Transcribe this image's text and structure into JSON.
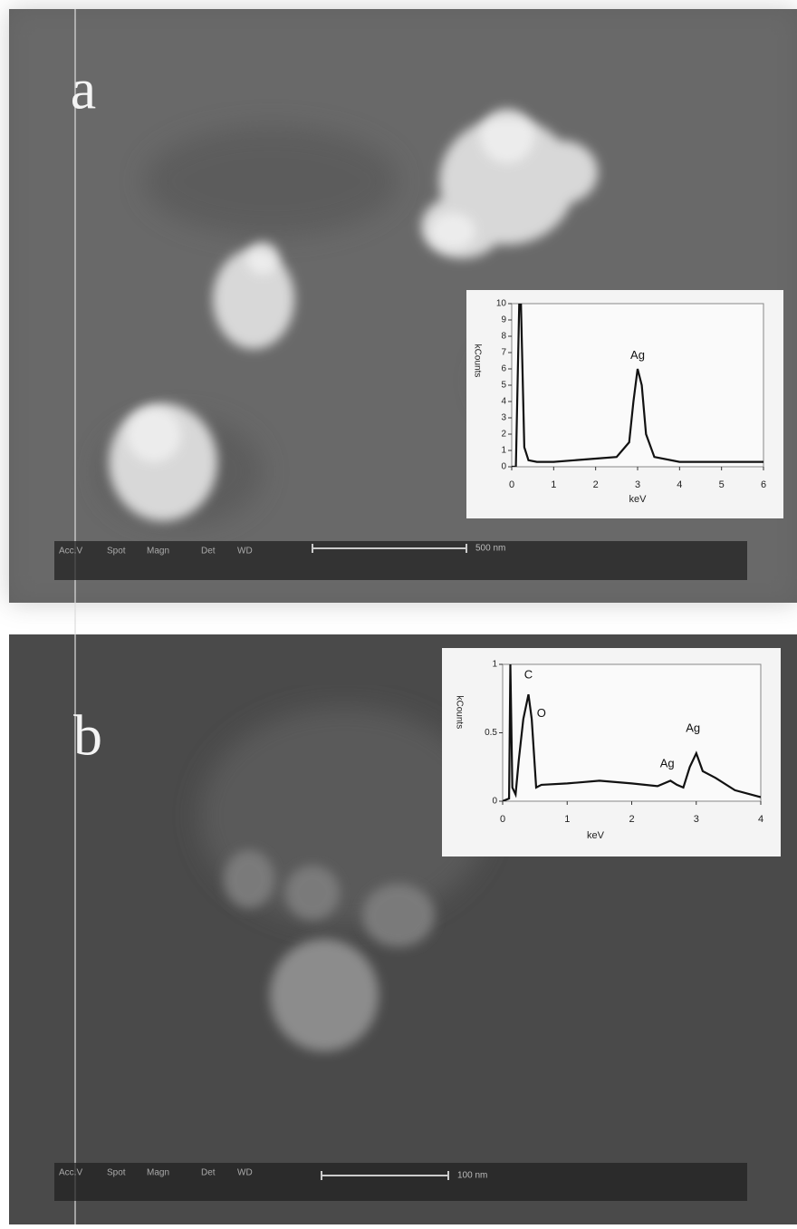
{
  "chart_data": [
    {
      "type": "line",
      "xlabel": "keV",
      "ylabel": "kCounts",
      "color": "#111111",
      "x": [
        0,
        0.1,
        0.18,
        0.22,
        0.3,
        0.4,
        0.6,
        1,
        1.5,
        2,
        2.5,
        2.8,
        2.9,
        3,
        3.1,
        3.2,
        3.4,
        4,
        5,
        6
      ],
      "values": [
        0,
        0,
        10,
        10,
        1.2,
        0.4,
        0.3,
        0.3,
        0.4,
        0.5,
        0.6,
        1.5,
        4,
        6,
        5,
        2,
        0.6,
        0.3,
        0.3,
        0.3
      ],
      "xlim": [
        0,
        6
      ],
      "ylim": [
        0,
        10
      ],
      "xticks": [
        0,
        1,
        2,
        3,
        4,
        5,
        6
      ],
      "yticks": [
        0,
        1,
        2,
        3,
        4,
        5,
        6,
        7,
        8,
        9,
        10
      ],
      "annotations": [
        {
          "text": "Ag",
          "x": 3,
          "y": 6.8
        }
      ]
    },
    {
      "type": "line",
      "xlabel": "keV",
      "ylabel": "kCounts",
      "color": "#111111",
      "x": [
        0,
        0.1,
        0.12,
        0.15,
        0.2,
        0.25,
        0.32,
        0.4,
        0.45,
        0.52,
        0.6,
        1,
        1.5,
        2,
        2.4,
        2.6,
        2.7,
        2.8,
        2.9,
        3,
        3.1,
        3.3,
        3.6,
        4
      ],
      "values": [
        0,
        0.02,
        1,
        0.1,
        0.05,
        0.3,
        0.6,
        0.78,
        0.6,
        0.1,
        0.12,
        0.13,
        0.15,
        0.13,
        0.11,
        0.15,
        0.12,
        0.1,
        0.25,
        0.35,
        0.22,
        0.17,
        0.08,
        0.03
      ],
      "xlim": [
        0,
        4
      ],
      "ylim": [
        0,
        1
      ],
      "xticks": [
        0,
        1,
        2,
        3,
        4
      ],
      "yticks": [
        0,
        0.5,
        1
      ],
      "annotations": [
        {
          "text": "C",
          "x": 0.4,
          "y": 0.92
        },
        {
          "text": "O",
          "x": 0.6,
          "y": 0.64
        },
        {
          "text": "Ag",
          "x": 2.55,
          "y": 0.27
        },
        {
          "text": "Ag",
          "x": 2.95,
          "y": 0.53
        }
      ]
    }
  ],
  "panels": [
    {
      "label": "a",
      "scale_bar": "500 nm",
      "info_header": [
        "Acc.V",
        "Spot",
        "Magn",
        "Det",
        "WD"
      ]
    },
    {
      "label": "b",
      "scale_bar": "100 nm",
      "info_header": [
        "Acc.V",
        "Spot",
        "Magn",
        "Det",
        "WD"
      ]
    }
  ]
}
